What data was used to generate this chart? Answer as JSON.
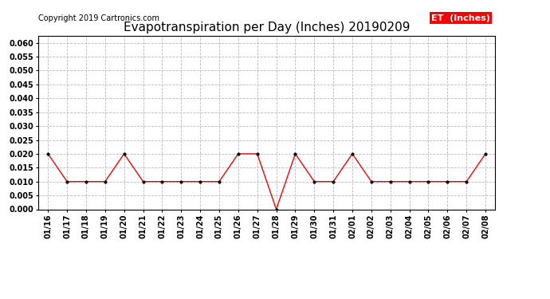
{
  "title": "Evapotranspiration per Day (Inches) 20190209",
  "copyright": "Copyright 2019 Cartronics.com",
  "legend_label": "ET  (Inches)",
  "legend_bg": "#FF0000",
  "legend_text_color": "#FFFFFF",
  "line_color": "#FF0000",
  "marker_color": "#000000",
  "background_color": "#FFFFFF",
  "grid_color": "#BBBBBB",
  "ylim": [
    0.0,
    0.0625
  ],
  "yticks": [
    0.0,
    0.005,
    0.01,
    0.015,
    0.02,
    0.025,
    0.03,
    0.035,
    0.04,
    0.045,
    0.05,
    0.055,
    0.06
  ],
  "dates": [
    "01/16",
    "01/17",
    "01/18",
    "01/19",
    "01/20",
    "01/21",
    "01/22",
    "01/23",
    "01/24",
    "01/25",
    "01/26",
    "01/27",
    "01/28",
    "01/29",
    "01/30",
    "01/31",
    "02/01",
    "02/02",
    "02/03",
    "02/04",
    "02/05",
    "02/06",
    "02/07",
    "02/08"
  ],
  "values": [
    0.02,
    0.01,
    0.01,
    0.01,
    0.02,
    0.01,
    0.01,
    0.01,
    0.01,
    0.01,
    0.02,
    0.02,
    0.0,
    0.02,
    0.01,
    0.01,
    0.02,
    0.01,
    0.01,
    0.01,
    0.01,
    0.01,
    0.01,
    0.02
  ],
  "title_fontsize": 11,
  "copyright_fontsize": 7,
  "tick_fontsize": 7,
  "legend_fontsize": 8
}
